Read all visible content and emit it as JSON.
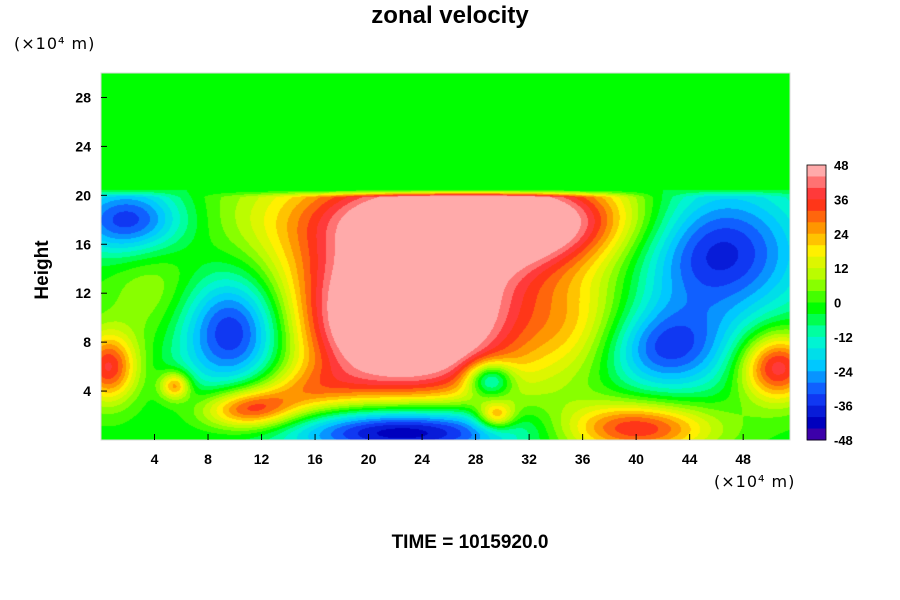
{
  "chart_data": {
    "type": "heatmap",
    "title": "zonal velocity",
    "xlabel": "",
    "ylabel": "Height",
    "x_unit": "(×10⁴ m)",
    "y_unit": "(×10⁴ m)",
    "xlim": [
      0,
      51.5
    ],
    "ylim": [
      0,
      30
    ],
    "x_ticks": [
      4,
      8,
      12,
      16,
      20,
      24,
      28,
      32,
      36,
      40,
      44,
      48
    ],
    "y_ticks": [
      4,
      8,
      12,
      16,
      20,
      24,
      28
    ],
    "colorbar": {
      "min": -48,
      "max": 48,
      "ticks": [
        48,
        36,
        24,
        12,
        0,
        -12,
        -24,
        -36,
        -48
      ]
    },
    "field_top_height": 20.5,
    "field_above_value": -2,
    "features": [
      {
        "x": 22.5,
        "y": 9.0,
        "value": 48,
        "sx": 5.5,
        "sy": 4.5
      },
      {
        "x": 24.0,
        "y": 14.0,
        "value": 38,
        "sx": 8.0,
        "sy": 6.0
      },
      {
        "x": 27.0,
        "y": 18.5,
        "value": 32,
        "sx": 9.0,
        "sy": 2.5
      },
      {
        "x": 33.0,
        "y": 17.5,
        "value": 22,
        "sx": 5.0,
        "sy": 2.5
      },
      {
        "x": 10.0,
        "y": 9.0,
        "value": -42,
        "sx": 3.0,
        "sy": 3.5
      },
      {
        "x": 2.0,
        "y": 18.0,
        "value": -34,
        "sx": 3.0,
        "sy": 2.0
      },
      {
        "x": 46.0,
        "y": 15.5,
        "value": -38,
        "sx": 4.5,
        "sy": 4.0
      },
      {
        "x": 42.0,
        "y": 7.5,
        "value": -32,
        "sx": 3.5,
        "sy": 2.5
      },
      {
        "x": 22.5,
        "y": 0.8,
        "value": -52,
        "sx": 6.0,
        "sy": 1.5
      },
      {
        "x": 29.0,
        "y": 5.0,
        "value": -34,
        "sx": 1.2,
        "sy": 1.0
      },
      {
        "x": 11.0,
        "y": 2.5,
        "value": 38,
        "sx": 2.5,
        "sy": 1.2
      },
      {
        "x": 0.5,
        "y": 6.0,
        "value": 38,
        "sx": 1.5,
        "sy": 2.0
      },
      {
        "x": 50.5,
        "y": 6.0,
        "value": 42,
        "sx": 2.0,
        "sy": 2.0
      },
      {
        "x": 40.0,
        "y": 1.0,
        "value": 38,
        "sx": 4.0,
        "sy": 1.5
      },
      {
        "x": 29.5,
        "y": 2.0,
        "value": 30,
        "sx": 1.0,
        "sy": 0.8
      },
      {
        "x": 5.5,
        "y": 4.5,
        "value": 30,
        "sx": 0.8,
        "sy": 0.8
      },
      {
        "x": 4.0,
        "y": 12.0,
        "value": 10,
        "sx": 2.5,
        "sy": 3.0
      },
      {
        "x": 15.0,
        "y": 4.0,
        "value": 16,
        "sx": 3.0,
        "sy": 1.5
      },
      {
        "x": 36.0,
        "y": 9.0,
        "value": 14,
        "sx": 3.0,
        "sy": 3.0
      }
    ]
  },
  "footer": {
    "time": "TIME = 1015920.0"
  }
}
